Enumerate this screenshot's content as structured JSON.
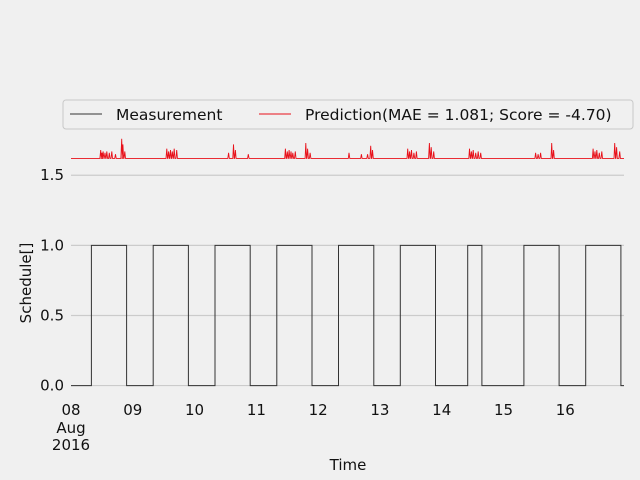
{
  "chart_data": {
    "type": "line",
    "title": "",
    "xlabel": "Time",
    "ylabel": "Schedule[]",
    "xlim": [
      0,
      8.95
    ],
    "ylim": [
      -0.06,
      1.68
    ],
    "grid": true,
    "legend_position": "top",
    "legend": [
      "Measurement",
      "Prediction(MAE = 1.081; Score = -4.70)"
    ],
    "xticks": [
      {
        "x": 0,
        "label": "08",
        "sub": [
          "Aug",
          "2016"
        ]
      },
      {
        "x": 1,
        "label": "09",
        "sub": []
      },
      {
        "x": 2,
        "label": "10",
        "sub": []
      },
      {
        "x": 3,
        "label": "11",
        "sub": []
      },
      {
        "x": 4,
        "label": "12",
        "sub": []
      },
      {
        "x": 5,
        "label": "13",
        "sub": []
      },
      {
        "x": 6,
        "label": "14",
        "sub": []
      },
      {
        "x": 7,
        "label": "15",
        "sub": []
      },
      {
        "x": 8,
        "label": "16",
        "sub": []
      }
    ],
    "yticks": [
      {
        "y": 0.0,
        "label": "0.0"
      },
      {
        "y": 0.5,
        "label": "0.5"
      },
      {
        "y": 1.0,
        "label": "1.0"
      },
      {
        "y": 1.5,
        "label": "1.5"
      }
    ],
    "series": [
      {
        "name": "Measurement",
        "color": "#333333",
        "on_intervals": [
          [
            0.33,
            0.9
          ],
          [
            1.33,
            1.9
          ],
          [
            2.33,
            2.9
          ],
          [
            3.33,
            3.9
          ],
          [
            4.33,
            4.9
          ],
          [
            5.33,
            5.9
          ],
          [
            6.42,
            6.65
          ],
          [
            7.33,
            7.9
          ],
          [
            8.33,
            8.9
          ]
        ],
        "baseline": 0.0,
        "high": 1.0,
        "end": 8.95
      },
      {
        "name": "Prediction(MAE = 1.081; Score = -4.70)",
        "color": "#e8111a",
        "baseline": 1.62,
        "spikes": [
          [
            0.48,
            0.06
          ],
          [
            0.5,
            0.04
          ],
          [
            0.52,
            0.05
          ],
          [
            0.55,
            0.04
          ],
          [
            0.58,
            0.05
          ],
          [
            0.62,
            0.04
          ],
          [
            0.66,
            0.05
          ],
          [
            0.72,
            0.03
          ],
          [
            0.82,
            0.14
          ],
          [
            0.84,
            0.1
          ],
          [
            0.87,
            0.05
          ],
          [
            1.55,
            0.07
          ],
          [
            1.58,
            0.05
          ],
          [
            1.61,
            0.06
          ],
          [
            1.64,
            0.05
          ],
          [
            1.67,
            0.07
          ],
          [
            1.71,
            0.06
          ],
          [
            2.55,
            0.04
          ],
          [
            2.63,
            0.1
          ],
          [
            2.66,
            0.06
          ],
          [
            2.87,
            0.03
          ],
          [
            3.47,
            0.07
          ],
          [
            3.5,
            0.05
          ],
          [
            3.53,
            0.06
          ],
          [
            3.56,
            0.05
          ],
          [
            3.59,
            0.04
          ],
          [
            3.63,
            0.05
          ],
          [
            3.8,
            0.11
          ],
          [
            3.83,
            0.07
          ],
          [
            3.87,
            0.04
          ],
          [
            4.5,
            0.04
          ],
          [
            4.7,
            0.03
          ],
          [
            4.8,
            0.03
          ],
          [
            4.85,
            0.09
          ],
          [
            4.88,
            0.06
          ],
          [
            5.45,
            0.07
          ],
          [
            5.48,
            0.05
          ],
          [
            5.51,
            0.06
          ],
          [
            5.55,
            0.04
          ],
          [
            5.59,
            0.05
          ],
          [
            5.8,
            0.11
          ],
          [
            5.83,
            0.08
          ],
          [
            5.87,
            0.05
          ],
          [
            6.45,
            0.07
          ],
          [
            6.48,
            0.05
          ],
          [
            6.51,
            0.06
          ],
          [
            6.55,
            0.04
          ],
          [
            6.59,
            0.05
          ],
          [
            6.63,
            0.04
          ],
          [
            7.52,
            0.04
          ],
          [
            7.56,
            0.03
          ],
          [
            7.6,
            0.04
          ],
          [
            7.78,
            0.11
          ],
          [
            7.81,
            0.06
          ],
          [
            8.45,
            0.07
          ],
          [
            8.48,
            0.05
          ],
          [
            8.51,
            0.06
          ],
          [
            8.55,
            0.04
          ],
          [
            8.59,
            0.05
          ],
          [
            8.8,
            0.11
          ],
          [
            8.83,
            0.08
          ],
          [
            8.88,
            0.05
          ]
        ]
      }
    ]
  }
}
